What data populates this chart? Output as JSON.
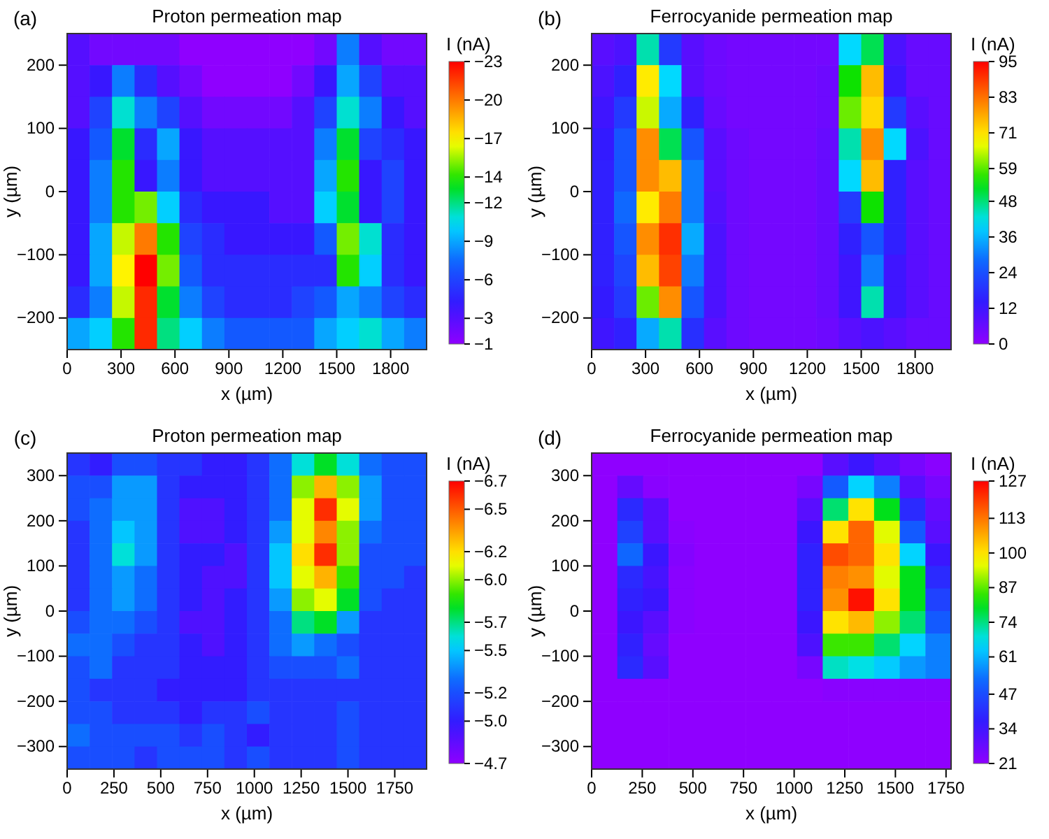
{
  "chart_data": [
    {
      "type": "heatmap",
      "title": "Proton permeation map",
      "xlabel": "x (µm)",
      "ylabel": "y (µm)",
      "clabel": "I (nA)",
      "annotations": [
        "(a)"
      ],
      "xlim": [
        0,
        2000
      ],
      "xticks": [
        0,
        300,
        600,
        900,
        1200,
        1500,
        1800
      ],
      "ylim": [
        -250,
        250
      ],
      "yticks": [
        -200,
        -100,
        0,
        100,
        200
      ],
      "clim": [
        -1,
        -23
      ],
      "cticks": [
        -1,
        -3,
        -6,
        -9,
        -12,
        -14,
        -17,
        -20,
        -23
      ],
      "cells": [
        [
          -3,
          -2,
          -2,
          -2,
          -2,
          -1,
          -1,
          -1,
          -1,
          -1,
          -1,
          -2,
          -8,
          -3,
          -2,
          -2
        ],
        [
          -3,
          -4,
          -8,
          -5,
          -3,
          -2,
          -1,
          -1,
          -1,
          -1,
          -2,
          -4,
          -9,
          -6,
          -3,
          -3
        ],
        [
          -3,
          -6,
          -11,
          -8,
          -6,
          -3,
          -2,
          -2,
          -2,
          -2,
          -3,
          -6,
          -11,
          -8,
          -4,
          -3
        ],
        [
          -4,
          -7,
          -13,
          -5,
          -9,
          -4,
          -3,
          -3,
          -3,
          -3,
          -3,
          -8,
          -13,
          -6,
          -5,
          -4
        ],
        [
          -4,
          -8,
          -14,
          -4,
          -8,
          -4,
          -3,
          -3,
          -3,
          -3,
          -3,
          -9,
          -14,
          -4,
          -6,
          -4
        ],
        [
          -4,
          -8,
          -14,
          -15,
          -10,
          -5,
          -4,
          -4,
          -4,
          -3,
          -3,
          -10,
          -13,
          -4,
          -6,
          -4
        ],
        [
          -4,
          -9,
          -16,
          -20,
          -14,
          -6,
          -5,
          -4,
          -4,
          -4,
          -4,
          -7,
          -15,
          -11,
          -5,
          -4
        ],
        [
          -4,
          -9,
          -17,
          -23,
          -15,
          -7,
          -5,
          -5,
          -5,
          -5,
          -5,
          -5,
          -14,
          -10,
          -5,
          -4
        ],
        [
          -5,
          -8,
          -16,
          -22,
          -13,
          -8,
          -6,
          -5,
          -5,
          -5,
          -6,
          -7,
          -9,
          -8,
          -6,
          -5
        ],
        [
          -9,
          -10,
          -14,
          -22,
          -12,
          -10,
          -8,
          -7,
          -7,
          -7,
          -7,
          -9,
          -10,
          -11,
          -9,
          -8
        ]
      ]
    },
    {
      "type": "heatmap",
      "title": "Ferrocyanide permeation map",
      "xlabel": "x (µm)",
      "ylabel": "y (µm)",
      "clabel": "I (nA)",
      "annotations": [
        "(b)"
      ],
      "xlim": [
        0,
        2000
      ],
      "xticks": [
        0,
        300,
        600,
        900,
        1200,
        1500,
        1800
      ],
      "ylim": [
        -250,
        250
      ],
      "yticks": [
        -200,
        -100,
        0,
        100,
        200
      ],
      "clim": [
        0,
        95
      ],
      "cticks": [
        0,
        12,
        24,
        36,
        48,
        59,
        71,
        83,
        95
      ],
      "cells": [
        [
          8,
          10,
          45,
          20,
          8,
          5,
          4,
          4,
          4,
          4,
          4,
          40,
          50,
          10,
          6,
          6
        ],
        [
          10,
          15,
          70,
          40,
          8,
          5,
          4,
          4,
          4,
          4,
          5,
          55,
          75,
          12,
          6,
          6
        ],
        [
          12,
          20,
          65,
          35,
          15,
          6,
          4,
          4,
          4,
          4,
          5,
          60,
          72,
          20,
          8,
          6
        ],
        [
          14,
          25,
          80,
          50,
          25,
          8,
          5,
          4,
          4,
          4,
          6,
          45,
          80,
          40,
          10,
          6
        ],
        [
          15,
          25,
          80,
          75,
          30,
          8,
          5,
          4,
          4,
          4,
          6,
          40,
          75,
          15,
          8,
          6
        ],
        [
          15,
          28,
          70,
          82,
          30,
          9,
          5,
          4,
          4,
          4,
          6,
          20,
          55,
          15,
          8,
          6
        ],
        [
          15,
          25,
          80,
          90,
          35,
          10,
          5,
          4,
          4,
          4,
          6,
          15,
          25,
          15,
          8,
          6
        ],
        [
          15,
          22,
          75,
          88,
          30,
          10,
          5,
          4,
          4,
          4,
          6,
          12,
          30,
          12,
          8,
          6
        ],
        [
          14,
          20,
          60,
          80,
          25,
          10,
          5,
          4,
          4,
          4,
          6,
          12,
          45,
          12,
          8,
          6
        ],
        [
          12,
          15,
          35,
          45,
          18,
          8,
          5,
          4,
          4,
          4,
          5,
          8,
          10,
          8,
          6,
          6
        ]
      ]
    },
    {
      "type": "heatmap",
      "title": "Proton permeation map",
      "xlabel": "x (µm)",
      "ylabel": "y (µm)",
      "clabel": "I (nA)",
      "annotations": [
        "(c)"
      ],
      "xlim": [
        0,
        1920
      ],
      "xticks": [
        0,
        250,
        500,
        750,
        1000,
        1250,
        1500,
        1750
      ],
      "ylim": [
        -350,
        350
      ],
      "yticks": [
        -300,
        -200,
        -100,
        0,
        100,
        200,
        300
      ],
      "clim": [
        -4.7,
        -6.7
      ],
      "cticks": [
        -4.7,
        {
          "value": -5,
          "label": "−5.0"
        },
        -5.2,
        -5.5,
        -5.7,
        {
          "value": -6,
          "label": "−6.0"
        },
        -6.2,
        -6.5,
        -6.7
      ],
      "cells": [
        [
          -5.1,
          -5.0,
          -5.2,
          -5.2,
          -5.1,
          -5.1,
          -5.0,
          -5.0,
          -5.1,
          -5.3,
          -5.6,
          -5.8,
          -5.6,
          -5.3,
          -5.2,
          -5.2
        ],
        [
          -5.2,
          -5.2,
          -5.4,
          -5.4,
          -5.1,
          -5.0,
          -5.0,
          -5.0,
          -5.1,
          -5.3,
          -6.0,
          -6.3,
          -6.0,
          -5.4,
          -5.2,
          -5.2
        ],
        [
          -5.2,
          -5.3,
          -5.4,
          -5.4,
          -5.1,
          -4.9,
          -4.9,
          -5.0,
          -5.1,
          -5.3,
          -6.1,
          -6.6,
          -6.1,
          -5.4,
          -5.2,
          -5.2
        ],
        [
          -5.1,
          -5.3,
          -5.5,
          -5.4,
          -5.1,
          -4.9,
          -4.9,
          -5.0,
          -5.1,
          -5.4,
          -6.1,
          -6.4,
          -6.0,
          -5.3,
          -5.2,
          -5.2
        ],
        [
          -5.1,
          -5.3,
          -5.6,
          -5.4,
          -5.1,
          -5.0,
          -5.0,
          -4.9,
          -5.1,
          -5.5,
          -6.2,
          -6.6,
          -6.0,
          -5.2,
          -5.2,
          -5.2
        ],
        [
          -5.1,
          -5.3,
          -5.4,
          -5.3,
          -5.1,
          -5.0,
          -4.9,
          -4.9,
          -5.1,
          -5.5,
          -6.1,
          -6.3,
          -5.9,
          -5.2,
          -5.2,
          -5.1
        ],
        [
          -5.1,
          -5.3,
          -5.4,
          -5.3,
          -5.1,
          -5.0,
          -4.9,
          -5.0,
          -5.1,
          -5.4,
          -6.0,
          -6.1,
          -5.8,
          -5.2,
          -5.1,
          -5.1
        ],
        [
          -5.2,
          -5.3,
          -5.3,
          -5.2,
          -5.1,
          -4.9,
          -4.9,
          -5.0,
          -5.1,
          -5.3,
          -5.7,
          -5.8,
          -5.4,
          -5.1,
          -5.1,
          -5.1
        ],
        [
          -5.3,
          -5.3,
          -5.2,
          -5.1,
          -5.1,
          -5.0,
          -4.9,
          -5.0,
          -5.1,
          -5.3,
          -5.4,
          -5.3,
          -5.2,
          -5.1,
          -5.1,
          -5.1
        ],
        [
          -5.2,
          -5.3,
          -5.1,
          -5.1,
          -5.1,
          -5.0,
          -5.0,
          -5.0,
          -5.1,
          -5.2,
          -5.2,
          -5.2,
          -5.3,
          -5.1,
          -5.1,
          -5.1
        ],
        [
          -5.2,
          -5.1,
          -5.1,
          -5.1,
          -5.0,
          -5.0,
          -5.0,
          -5.0,
          -5.1,
          -5.1,
          -5.1,
          -5.1,
          -5.1,
          -5.1,
          -5.1,
          -5.1
        ],
        [
          -5.2,
          -5.2,
          -5.1,
          -5.1,
          -5.1,
          -5.0,
          -5.1,
          -5.1,
          -5.2,
          -5.1,
          -5.1,
          -5.1,
          -5.2,
          -5.1,
          -5.1,
          -5.1
        ],
        [
          -5.3,
          -5.2,
          -5.2,
          -5.2,
          -5.2,
          -5.1,
          -5.2,
          -5.1,
          -5.0,
          -5.1,
          -5.1,
          -5.1,
          -5.2,
          -5.1,
          -5.1,
          -5.1
        ],
        [
          -5.2,
          -5.2,
          -5.2,
          -5.1,
          -5.2,
          -5.2,
          -5.2,
          -5.1,
          -5.2,
          -5.1,
          -5.1,
          -5.1,
          -5.2,
          -5.1,
          -5.1,
          -5.1
        ]
      ]
    },
    {
      "type": "heatmap",
      "title": "Ferrocyanide permeation map",
      "xlabel": "x (µm)",
      "ylabel": "y (µm)",
      "clabel": "I (nA)",
      "annotations": [
        "(d)"
      ],
      "xlim": [
        0,
        1775
      ],
      "xticks": [
        0,
        250,
        500,
        750,
        1000,
        1250,
        1500,
        1750
      ],
      "ylim": [
        -350,
        350
      ],
      "yticks": [
        -300,
        -200,
        -100,
        0,
        100,
        200,
        300
      ],
      "clim": [
        21,
        127
      ],
      "cticks": [
        21,
        34,
        47,
        61,
        74,
        87,
        100,
        113,
        127
      ],
      "cells": [
        [
          21,
          21,
          21,
          21,
          21,
          21,
          21,
          21,
          21,
          30,
          35,
          30,
          25,
          22
        ],
        [
          21,
          28,
          22,
          21,
          21,
          21,
          21,
          21,
          25,
          50,
          65,
          55,
          30,
          25
        ],
        [
          21,
          40,
          30,
          21,
          21,
          21,
          21,
          21,
          30,
          75,
          100,
          80,
          40,
          28
        ],
        [
          21,
          45,
          30,
          22,
          21,
          21,
          21,
          21,
          35,
          100,
          115,
          95,
          50,
          30
        ],
        [
          21,
          52,
          35,
          23,
          21,
          21,
          21,
          21,
          38,
          118,
          115,
          100,
          65,
          35
        ],
        [
          21,
          40,
          33,
          22,
          21,
          21,
          21,
          21,
          38,
          112,
          110,
          95,
          80,
          40
        ],
        [
          21,
          38,
          35,
          22,
          21,
          21,
          21,
          21,
          38,
          110,
          125,
          100,
          80,
          45
        ],
        [
          21,
          35,
          30,
          22,
          21,
          21,
          21,
          21,
          35,
          100,
          105,
          90,
          75,
          50
        ],
        [
          21,
          38,
          28,
          21,
          21,
          21,
          21,
          21,
          32,
          85,
          85,
          75,
          65,
          55
        ],
        [
          21,
          40,
          30,
          21,
          21,
          21,
          21,
          21,
          25,
          70,
          68,
          64,
          58,
          55
        ],
        [
          21,
          21,
          21,
          21,
          21,
          21,
          21,
          21,
          21,
          22,
          22,
          22,
          22,
          22
        ],
        [
          21,
          21,
          21,
          21,
          21,
          21,
          21,
          21,
          21,
          21,
          21,
          21,
          21,
          21
        ],
        [
          21,
          21,
          21,
          21,
          21,
          21,
          21,
          21,
          21,
          21,
          21,
          21,
          21,
          21
        ],
        [
          21,
          21,
          21,
          21,
          21,
          21,
          21,
          21,
          21,
          21,
          21,
          21,
          21,
          21
        ]
      ]
    }
  ]
}
